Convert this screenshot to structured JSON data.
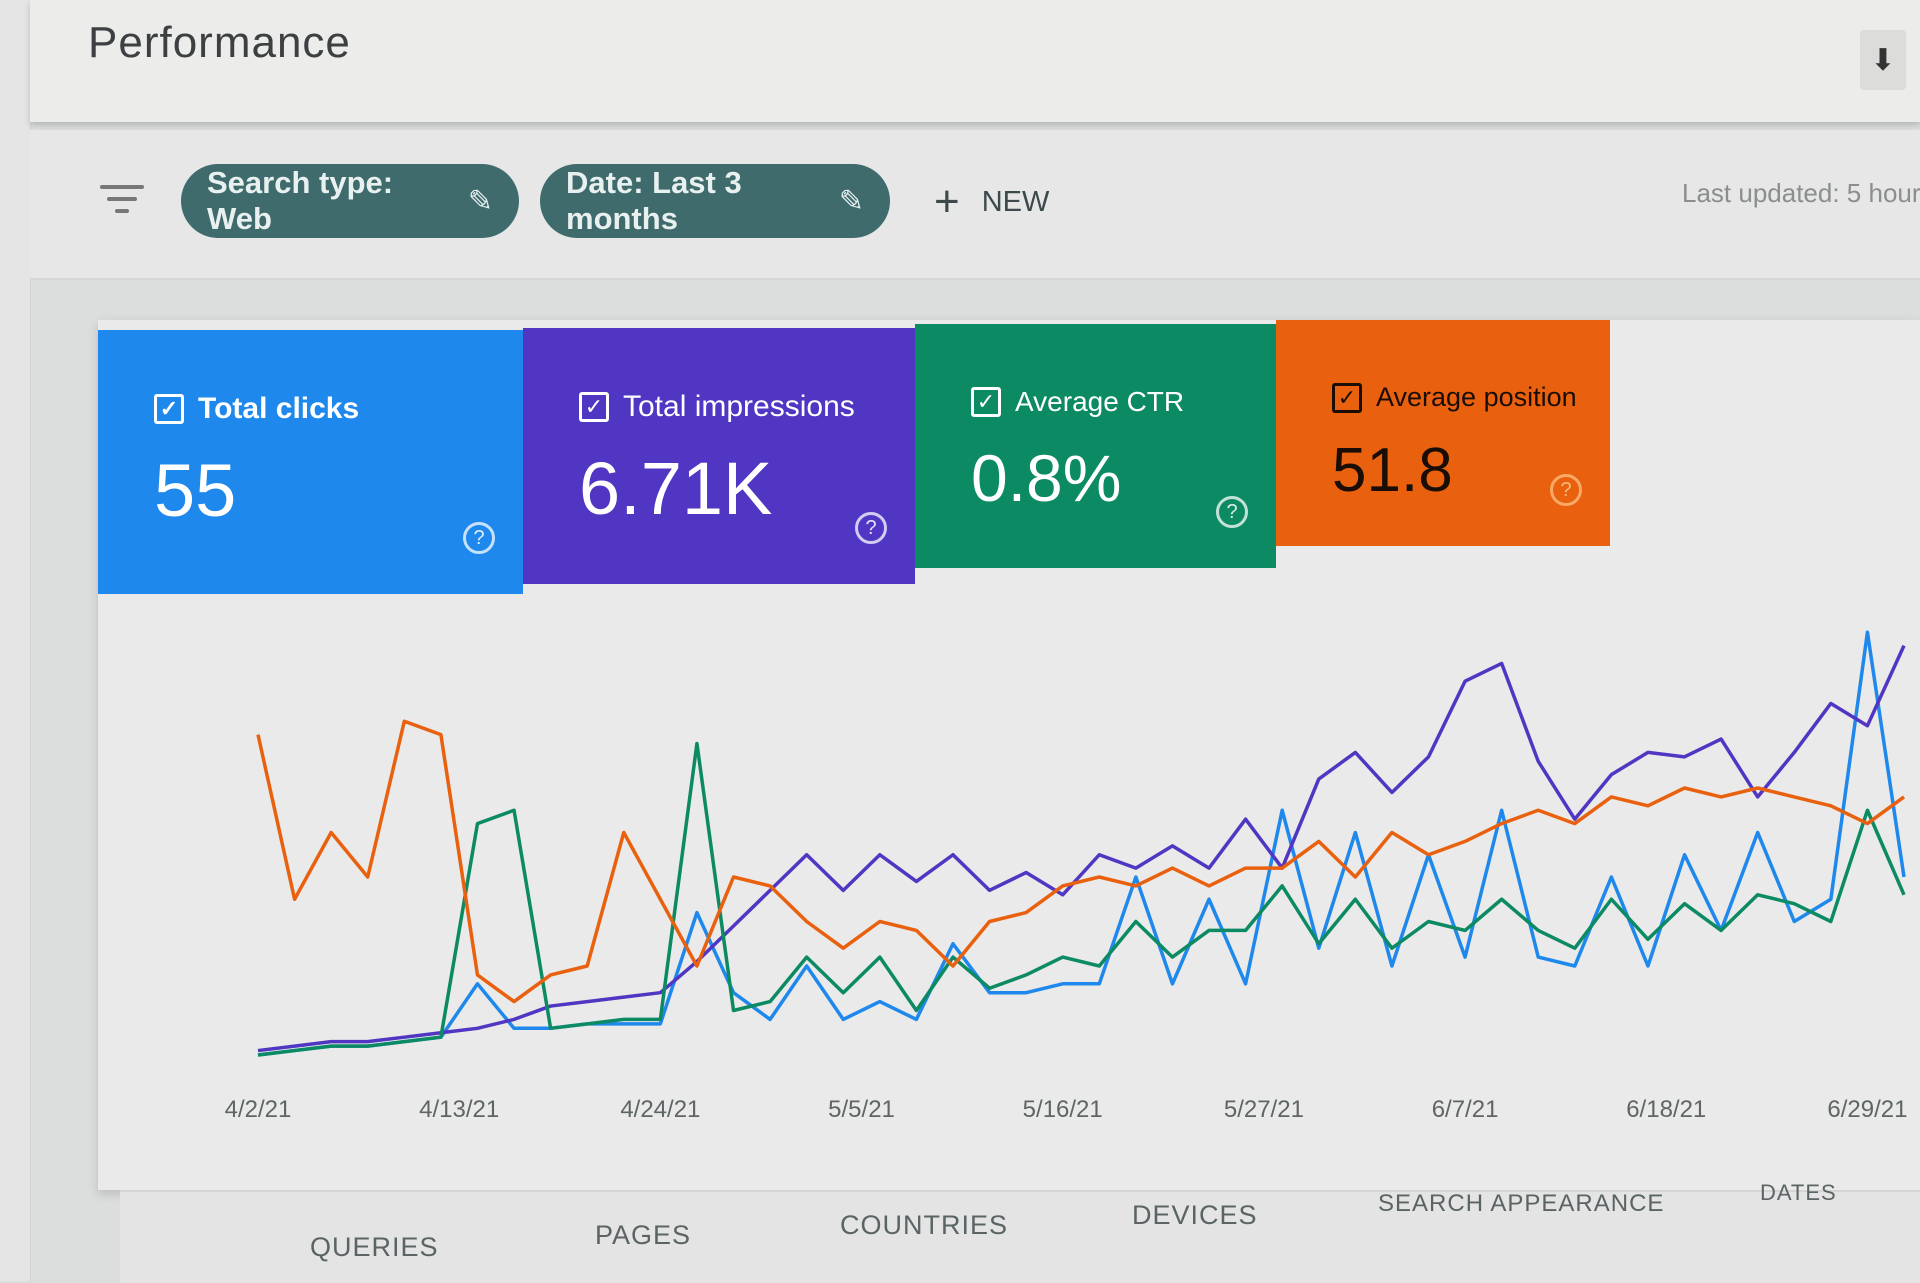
{
  "header": {
    "title": "Performance",
    "download_icon": "download-icon"
  },
  "filters": {
    "chips": [
      {
        "label": "Search type: Web",
        "icon": "pencil-icon"
      },
      {
        "label": "Date: Last 3 months",
        "icon": "pencil-icon"
      }
    ],
    "new_label": "NEW",
    "last_updated": "Last updated: 5 hour"
  },
  "metrics": [
    {
      "label": "Total clicks",
      "value": "55",
      "color": "#1f88ec",
      "checked": true
    },
    {
      "label": "Total impressions",
      "value": "6.71K",
      "color": "#5036c2",
      "checked": true
    },
    {
      "label": "Average CTR",
      "value": "0.8%",
      "color": "#0c8a64",
      "checked": true
    },
    {
      "label": "Average position",
      "value": "51.8",
      "color": "#e9610f",
      "checked": true
    }
  ],
  "chart_data": {
    "type": "line",
    "x_tick_labels": [
      "4/2/21",
      "4/13/21",
      "4/24/21",
      "5/5/21",
      "5/16/21",
      "5/27/21",
      "6/7/21",
      "6/18/21",
      "6/29/21"
    ],
    "x_start": "4/2/21",
    "x_step_days": 2,
    "ylim": [
      0,
      100
    ],
    "grid": false,
    "series": [
      {
        "name": "Total clicks",
        "color": "#1f88ec",
        "values": [
          0,
          1,
          2,
          2,
          3,
          4,
          16,
          6,
          6,
          7,
          7,
          7,
          32,
          14,
          8,
          20,
          8,
          12,
          8,
          25,
          14,
          14,
          16,
          16,
          40,
          16,
          35,
          16,
          55,
          24,
          50,
          20,
          45,
          22,
          55,
          22,
          20,
          40,
          20,
          45,
          28,
          50,
          30,
          35,
          95,
          40
        ]
      },
      {
        "name": "Total impressions",
        "color": "#5036c2",
        "values": [
          1,
          2,
          3,
          3,
          4,
          5,
          6,
          8,
          11,
          12,
          13,
          14,
          21,
          29,
          37,
          45,
          37,
          45,
          39,
          45,
          37,
          41,
          36,
          45,
          42,
          47,
          42,
          53,
          42,
          62,
          68,
          59,
          67,
          84,
          88,
          66,
          53,
          63,
          68,
          67,
          71,
          58,
          68,
          79,
          74,
          92
        ]
      },
      {
        "name": "Average CTR",
        "color": "#0c8a64",
        "values": [
          0,
          1,
          2,
          2,
          3,
          4,
          52,
          55,
          6,
          7,
          8,
          8,
          70,
          10,
          12,
          22,
          14,
          22,
          10,
          22,
          15,
          18,
          22,
          20,
          30,
          22,
          28,
          28,
          38,
          25,
          35,
          24,
          30,
          28,
          35,
          28,
          24,
          35,
          26,
          34,
          28,
          36,
          34,
          30,
          55,
          36
        ]
      },
      {
        "name": "Average position",
        "color": "#e9610f",
        "values": [
          72,
          35,
          50,
          40,
          75,
          72,
          18,
          12,
          18,
          20,
          50,
          35,
          20,
          40,
          38,
          30,
          24,
          30,
          28,
          20,
          30,
          32,
          38,
          40,
          38,
          42,
          38,
          42,
          42,
          48,
          40,
          50,
          45,
          48,
          52,
          55,
          52,
          58,
          56,
          60,
          58,
          60,
          58,
          56,
          52,
          58
        ]
      }
    ]
  },
  "tabs": [
    "QUERIES",
    "PAGES",
    "COUNTRIES",
    "DEVICES",
    "SEARCH APPEARANCE",
    "DATES"
  ]
}
